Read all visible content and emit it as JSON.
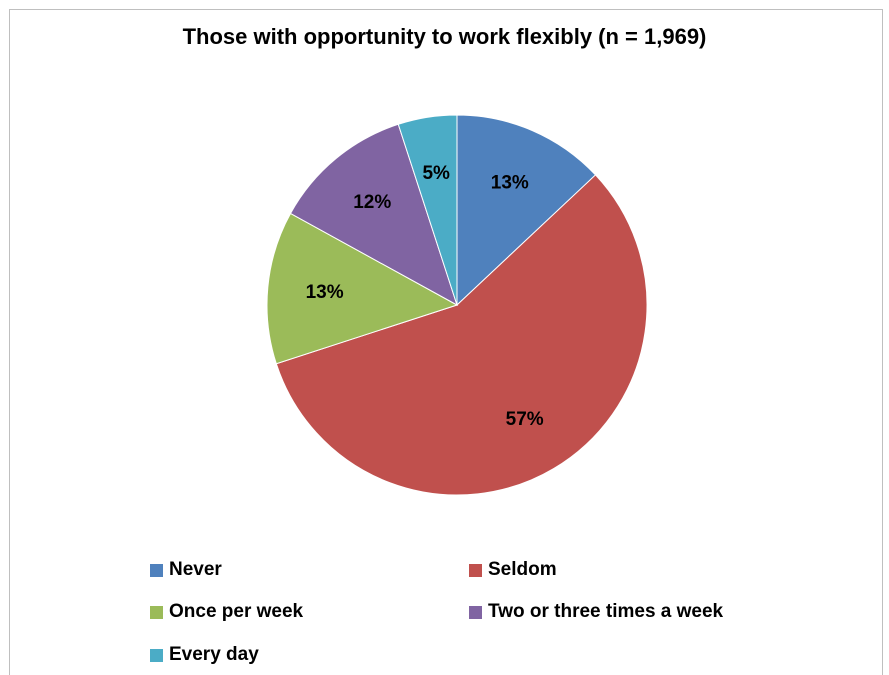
{
  "chart_data": {
    "type": "pie",
    "title": "Those with opportunity to work flexibly (n = 1,969)",
    "categories": [
      "Never",
      "Seldom",
      "Once per week",
      "Two or three times a week",
      "Every day"
    ],
    "values": [
      13,
      57,
      13,
      12,
      5
    ],
    "labels": [
      "13%",
      "57%",
      "13%",
      "12%",
      "5%"
    ],
    "colors": [
      "#4f81bd",
      "#c0504d",
      "#9bbb59",
      "#8064a2",
      "#4bacc6"
    ],
    "legend_position": "bottom"
  }
}
